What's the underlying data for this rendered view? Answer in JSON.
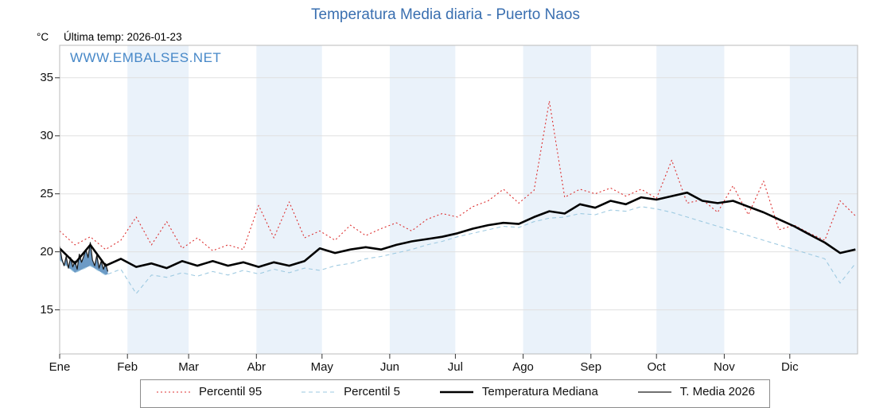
{
  "title": "Temperatura Media diaria - Puerto Naos",
  "header": {
    "unit_label": "°C",
    "last_temp_label": "Última temp: 2026-01-23"
  },
  "watermark": "WWW.EMBALSES.NET",
  "colors": {
    "title": "#3a6fb0",
    "watermark": "#4788c8",
    "band": "#eaf2fa",
    "grid": "#e0e0e0",
    "axis": "#bbbbbb",
    "tick": "#333333",
    "jan_fill": "#5c8fbf",
    "legend_border": "#8c8c8c"
  },
  "legend": [
    {
      "label": "Percentil 95",
      "icon": "dotted-red-line-icon"
    },
    {
      "label": "Percentil 5",
      "icon": "dashed-blue-line-icon"
    },
    {
      "label": "Temperatura Mediana",
      "icon": "thick-black-line-icon"
    },
    {
      "label": "T. Media 2026",
      "icon": "thin-black-line-icon"
    }
  ],
  "chart_data": {
    "type": "line",
    "title": "Temperatura Media diaria - Puerto Naos",
    "xlabel": "",
    "ylabel": "°C",
    "x_axis": {
      "categories": [
        "Ene",
        "Feb",
        "Mar",
        "Abr",
        "May",
        "Jun",
        "Jul",
        "Ago",
        "Sep",
        "Oct",
        "Nov",
        "Dic"
      ],
      "month_lengths": [
        31,
        28,
        31,
        30,
        31,
        30,
        31,
        31,
        30,
        31,
        30,
        31
      ],
      "total_days": 365
    },
    "y_axis": {
      "unit": "°C",
      "ticks": [
        15,
        20,
        25,
        30,
        35
      ],
      "ylim": [
        11.2,
        37.8
      ]
    },
    "series": [
      {
        "name": "Percentil 95",
        "color": "#dc3030",
        "dash": "2 3",
        "width": 1.1,
        "x_start": 0,
        "x_step": 7,
        "values": [
          21.8,
          20.6,
          21.3,
          20.2,
          21.0,
          23.0,
          20.6,
          22.6,
          20.3,
          21.2,
          20.1,
          20.6,
          20.2,
          24.0,
          21.2,
          24.3,
          21.2,
          21.8,
          21.0,
          22.3,
          21.4,
          22.0,
          22.5,
          21.8,
          22.8,
          23.3,
          23.0,
          23.9,
          24.4,
          25.4,
          24.2,
          25.3,
          33.0,
          24.7,
          25.4,
          25.0,
          25.5,
          24.8,
          25.4,
          24.6,
          27.9,
          24.2,
          24.5,
          23.4,
          25.7,
          23.2,
          26.1,
          21.9,
          22.3,
          21.6,
          21.0,
          24.4,
          23.1
        ]
      },
      {
        "name": "Percentil 5",
        "color": "#9ecae1",
        "dash": "5 4",
        "width": 1.1,
        "x_start": 0,
        "x_step": 7,
        "values": [
          19.3,
          18.2,
          18.8,
          18.0,
          18.5,
          16.4,
          18.0,
          17.8,
          18.2,
          17.9,
          18.3,
          18.0,
          18.4,
          18.1,
          18.5,
          18.2,
          18.6,
          18.4,
          18.8,
          19.0,
          19.4,
          19.6,
          19.9,
          20.2,
          20.6,
          20.9,
          21.3,
          21.6,
          21.9,
          22.2,
          22.1,
          22.6,
          22.9,
          23.0,
          23.3,
          23.2,
          23.6,
          23.5,
          23.9,
          23.7,
          23.4,
          23.0,
          22.6,
          22.2,
          21.8,
          21.4,
          21.0,
          20.6,
          20.2,
          19.8,
          19.4,
          17.3,
          19.0
        ]
      },
      {
        "name": "Temperatura Mediana",
        "color": "#000000",
        "dash": "",
        "width": 2.6,
        "x_start": 0,
        "x_step": 7,
        "values": [
          20.3,
          19.0,
          20.6,
          18.8,
          19.4,
          18.7,
          19.0,
          18.6,
          19.2,
          18.8,
          19.2,
          18.8,
          19.1,
          18.7,
          19.1,
          18.8,
          19.2,
          20.3,
          19.9,
          20.2,
          20.4,
          20.2,
          20.6,
          20.9,
          21.1,
          21.3,
          21.6,
          22.0,
          22.3,
          22.5,
          22.4,
          23.0,
          23.5,
          23.3,
          24.1,
          23.8,
          24.4,
          24.1,
          24.7,
          24.5,
          24.8,
          25.1,
          24.4,
          24.2,
          24.4,
          23.9,
          23.4,
          22.8,
          22.2,
          21.5,
          20.8,
          19.9,
          20.2
        ]
      },
      {
        "name": "T. Media 2026",
        "color": "#1a1a1a",
        "dash": "",
        "width": 1.2,
        "x_start": 0,
        "x_step": 1,
        "values": [
          20.5,
          19.4,
          18.8,
          19.6,
          18.6,
          19.5,
          18.7,
          19.2,
          18.5,
          19.8,
          19.1,
          19.6,
          20.2,
          19.5,
          20.8,
          19.3,
          18.8,
          19.7,
          18.6,
          19.2,
          18.5,
          19.0,
          18.3
        ]
      }
    ],
    "fill_between": {
      "upper": "T. Media 2026",
      "lower": "Percentil 5",
      "days": [
        0,
        22
      ],
      "color": "#5c8fbf",
      "opacity": 0.9
    },
    "grid": "on",
    "legend_position": "bottom"
  }
}
